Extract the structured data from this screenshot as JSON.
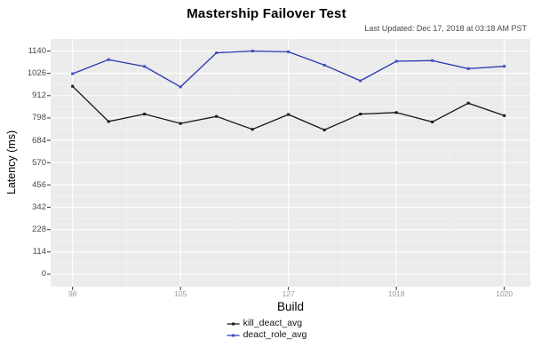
{
  "title": "Mastership Failover Test",
  "subtitle": "Last Updated: Dec 17, 2018 at 03:18 AM PST",
  "chart_data": {
    "type": "line",
    "title": "Mastership Failover Test",
    "xlabel": "Build",
    "ylabel": "Latency (ms)",
    "n_points": 13,
    "x_tick_indices": [
      0,
      3,
      6,
      9,
      12
    ],
    "x_tick_labels": [
      "98",
      "105",
      "127",
      "1018",
      "1020"
    ],
    "y_ticks": [
      0,
      114,
      228,
      342,
      456,
      570,
      684,
      798,
      912,
      1026,
      1140
    ],
    "ylim": [
      -60,
      1197
    ],
    "grid": true,
    "legend_position": "bottom-center",
    "series": [
      {
        "name": "kill_deact_avg",
        "color": "#161616",
        "marker_color": "#161616",
        "values": [
          960,
          780,
          818,
          770,
          806,
          740,
          816,
          737,
          818,
          826,
          778,
          874,
          810
        ]
      },
      {
        "name": "deact_role_avg",
        "color": "#2736ad",
        "marker_color": "#3c4ed1",
        "values": [
          1024,
          1096,
          1061,
          957,
          1131,
          1140,
          1136,
          1068,
          988,
          1088,
          1091,
          1050,
          1062
        ]
      }
    ]
  },
  "colors": {
    "panel_bg": "#ebebeb",
    "grid_major": "#ffffff",
    "grid_minor": "#f6f6f6",
    "tick_mark": "#333333",
    "y_tick_text": "#474747",
    "x_tick_text": "#9b9b9b"
  }
}
